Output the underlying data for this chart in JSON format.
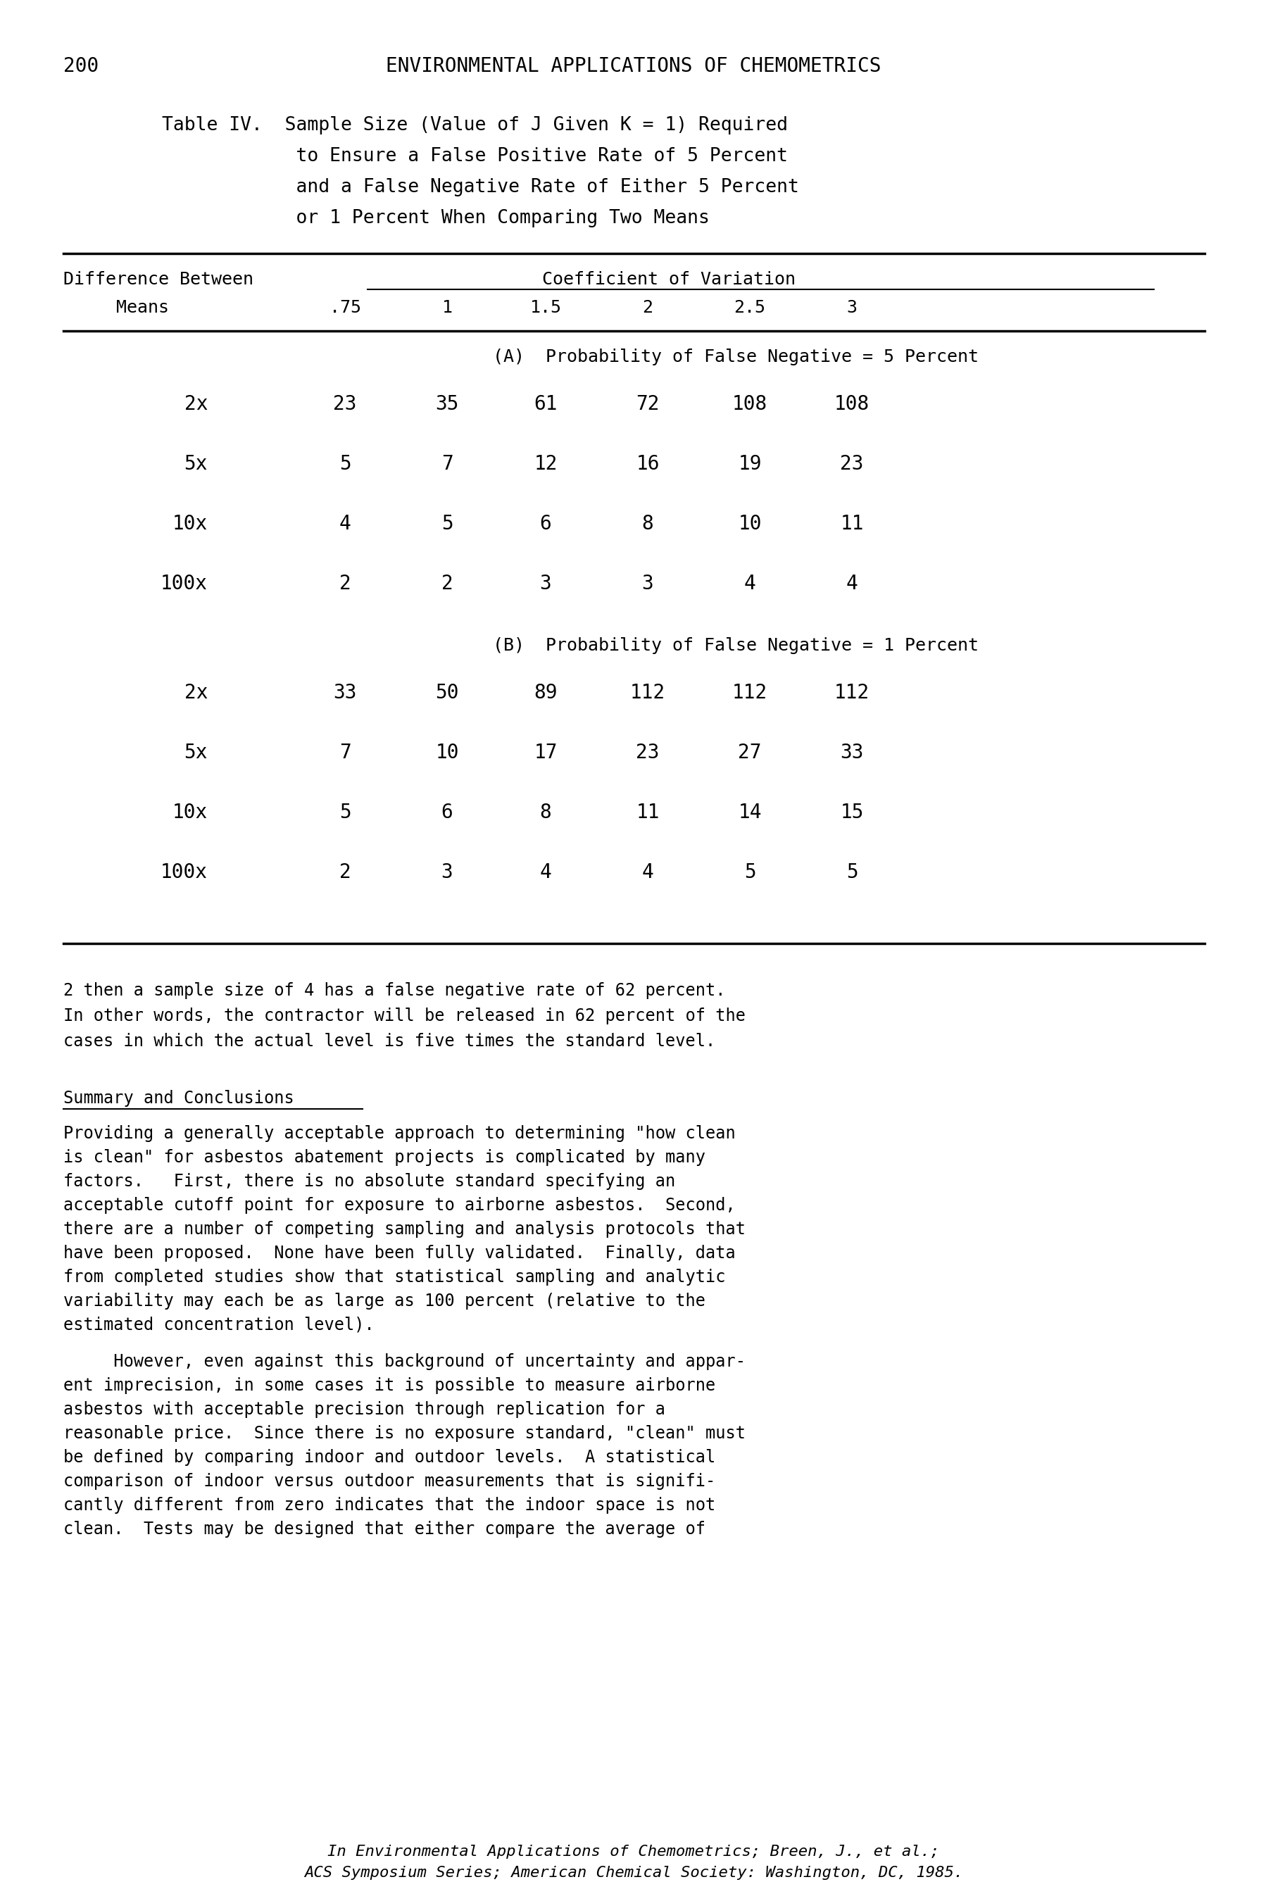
{
  "page_number": "200",
  "header": "ENVIRONMENTAL APPLICATIONS OF CHEMOMETRICS",
  "table_title_line1": "Table IV.  Sample Size (Value of J Given K = 1) Required",
  "table_title_line2": "            to Ensure a False Positive Rate of 5 Percent",
  "table_title_line3": "            and a False Negative Rate of Either 5 Percent",
  "table_title_line4": "            or 1 Percent When Comparing Two Means",
  "col_header1": "Difference Between",
  "col_header2": "     Means",
  "cov_header": "Coefficient of Variation",
  "col_values": [
    ".75",
    "1",
    "1.5",
    "2",
    "2.5",
    "3"
  ],
  "section_A_label": "(A)  Probability of False Negative = 5 Percent",
  "section_A_rows": [
    [
      "2x",
      "23",
      "35",
      "61",
      "72",
      "108",
      "108"
    ],
    [
      "5x",
      "5",
      "7",
      "12",
      "16",
      "19",
      "23"
    ],
    [
      "10x",
      "4",
      "5",
      "6",
      "8",
      "10",
      "11"
    ],
    [
      "100x",
      "2",
      "2",
      "3",
      "3",
      "4",
      "4"
    ]
  ],
  "section_B_label": "(B)  Probability of False Negative = 1 Percent",
  "section_B_rows": [
    [
      "2x",
      "33",
      "50",
      "89",
      "112",
      "112",
      "112"
    ],
    [
      "5x",
      "7",
      "10",
      "17",
      "23",
      "27",
      "33"
    ],
    [
      "10x",
      "5",
      "6",
      "8",
      "11",
      "14",
      "15"
    ],
    [
      "100x",
      "2",
      "3",
      "4",
      "4",
      "5",
      "5"
    ]
  ],
  "paragraph1_lines": [
    "2 then a sample size of 4 has a false negative rate of 62 percent.",
    "In other words, the contractor will be released in 62 percent of the",
    "cases in which the actual level is five times the standard level."
  ],
  "section_heading": "Summary and Conclusions",
  "paragraph2_lines": [
    "Providing a generally acceptable approach to determining \"how clean",
    "is clean\" for asbestos abatement projects is complicated by many",
    "factors.   First, there is no absolute standard specifying an",
    "acceptable cutoff point for exposure to airborne asbestos.  Second,",
    "there are a number of competing sampling and analysis protocols that",
    "have been proposed.  None have been fully validated.  Finally, data",
    "from completed studies show that statistical sampling and analytic",
    "variability may each be as large as 100 percent (relative to the",
    "estimated concentration level)."
  ],
  "paragraph3_lines": [
    "     However, even against this background of uncertainty and appar-",
    "ent imprecision, in some cases it is possible to measure airborne",
    "asbestos with acceptable precision through replication for a",
    "reasonable price.  Since there is no exposure standard, \"clean\" must",
    "be defined by comparing indoor and outdoor levels.  A statistical",
    "comparison of indoor versus outdoor measurements that is signifi-",
    "cantly different from zero indicates that the indoor space is not",
    "clean.  Tests may be designed that either compare the average of"
  ],
  "footer_line1": "In Environmental Applications of Chemometrics; Breen, J., et al.;",
  "footer_line2": "ACS Symposium Series; American Chemical Society: Washington, DC, 1985."
}
